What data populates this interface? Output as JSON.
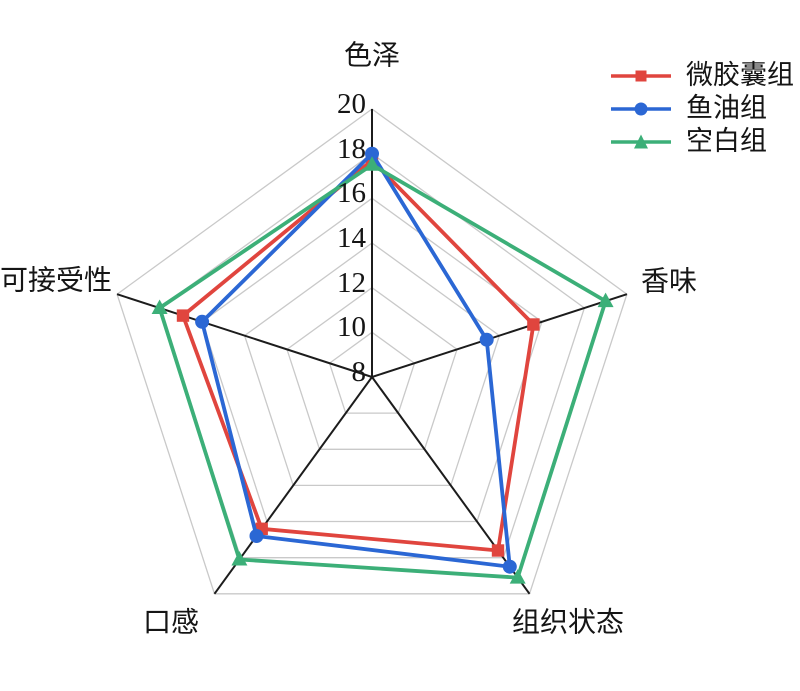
{
  "chart_data": {
    "type": "radar",
    "categories": [
      "色泽",
      "香味",
      "组织状态",
      "口感",
      "可接受性"
    ],
    "scale": {
      "min": 8,
      "max": 20,
      "ticks": [
        8,
        10,
        12,
        14,
        16,
        18,
        20
      ],
      "gridlines": [
        10,
        12,
        14,
        16,
        18,
        20
      ]
    },
    "series": [
      {
        "name": "微胶囊组",
        "color": "#e0453e",
        "marker": "square",
        "values": [
          17.7,
          15.6,
          17.6,
          16.4,
          16.9
        ]
      },
      {
        "name": "鱼油组",
        "color": "#2b67d4",
        "marker": "circle",
        "values": [
          18.0,
          13.4,
          18.5,
          16.8,
          16.0
        ]
      },
      {
        "name": "空白组",
        "color": "#3caf78",
        "marker": "triangle",
        "values": [
          17.5,
          19.0,
          19.1,
          18.1,
          18.0
        ]
      }
    ],
    "legend_position": "top-right",
    "grid_color": "#c9c9c9",
    "axis_color": "#1c1c1c",
    "text_color": "#151515",
    "background": "#ffffff"
  }
}
